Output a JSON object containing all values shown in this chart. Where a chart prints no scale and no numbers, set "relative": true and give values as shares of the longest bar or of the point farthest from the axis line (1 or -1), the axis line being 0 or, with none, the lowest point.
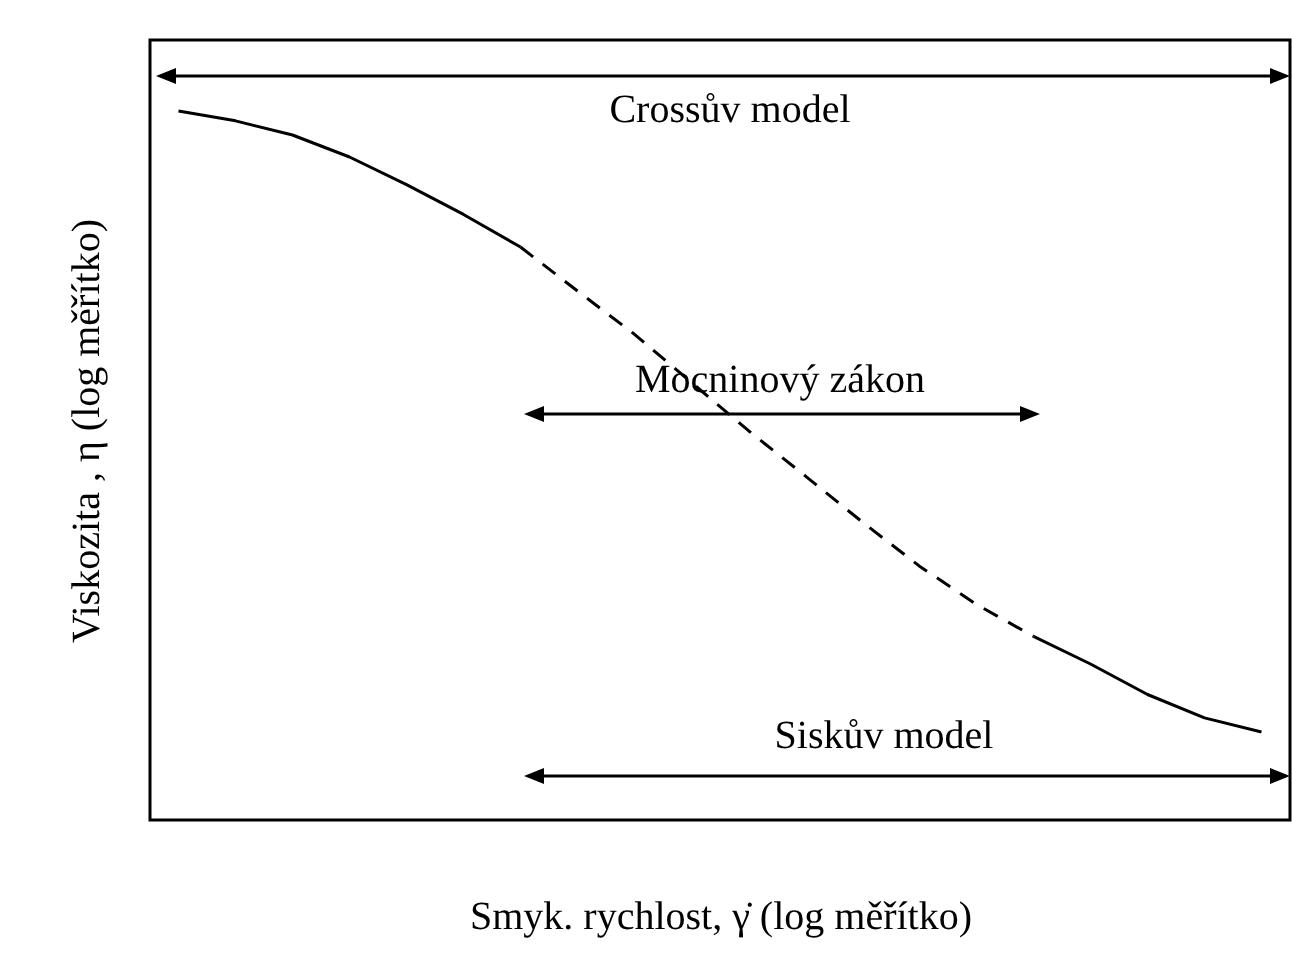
{
  "chart_data": {
    "type": "line",
    "relative": true,
    "xlabel": "Smyk. rychlost, γ̇ (log měřítko)",
    "ylabel": "Viskozita , η (log měřítko)",
    "categories": [
      null,
      null,
      null,
      null,
      null,
      null,
      null,
      null,
      null,
      null,
      null,
      null,
      null,
      null,
      null,
      null,
      null,
      null,
      null,
      null
    ],
    "series": [
      {
        "color": "#000000",
        "line_style": "solid",
        "values": [
          1,
          0.986,
          0.966,
          0.935,
          0.896,
          0.854,
          0.808,
          null,
          null,
          null,
          null,
          null,
          null,
          null,
          null,
          null,
          null,
          null,
          null,
          null
        ]
      },
      {
        "color": "#000000",
        "line_style": "solid",
        "values": [
          null,
          null,
          null,
          null,
          null,
          null,
          null,
          null,
          null,
          null,
          null,
          null,
          null,
          null,
          null,
          0.259,
          0.22,
          0.177,
          0.144,
          0.124
        ]
      },
      {
        "color": "#000000",
        "line_style": "dashed",
        "values": [
          null,
          null,
          null,
          null,
          null,
          null,
          0.808,
          0.746,
          0.685,
          0.617,
          0.549,
          0.485,
          0.42,
          0.358,
          0.304,
          0.259,
          null,
          null,
          null,
          null
        ]
      }
    ],
    "annotations": [
      "Crossův model",
      "Mocninový zákon",
      "Siskův model"
    ],
    "grid": false,
    "tick_labels": false,
    "marker": "none"
  }
}
